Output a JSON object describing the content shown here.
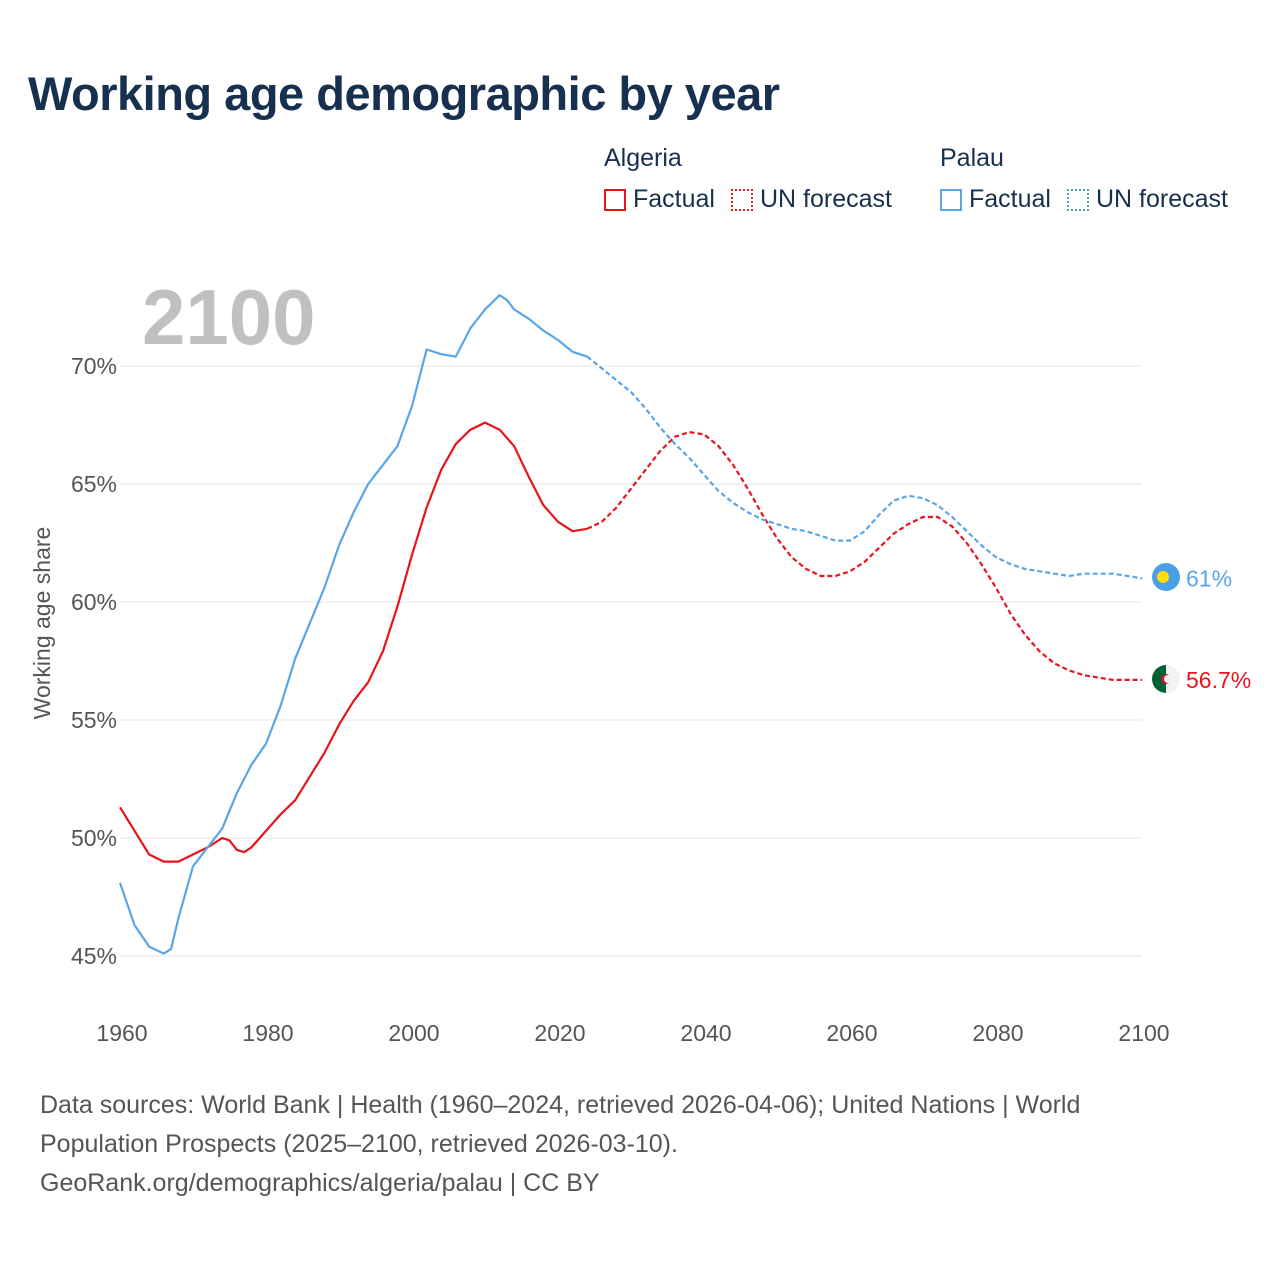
{
  "title": "Working age demographic by year",
  "legend": {
    "groups": [
      {
        "name": "Algeria",
        "factual_label": "Factual",
        "forecast_label": "UN forecast",
        "color": "#e8141c"
      },
      {
        "name": "Palau",
        "factual_label": "Factual",
        "forecast_label": "UN forecast",
        "color": "#5aa5e6",
        "forecast_color": "#4a9fb0"
      }
    ]
  },
  "footer": {
    "line1": "Data sources: World Bank | Health (1960–2024, retrieved 2026-04-06); United Nations | World",
    "line2": "Population Prospects (2025–2100, retrieved 2026-03-10).",
    "line3": "GeoRank.org/demographics/algeria/palau | CC BY"
  },
  "chart_data": {
    "type": "line",
    "title": "Working age demographic by year",
    "year_label": "2100",
    "xlabel": "",
    "ylabel": "Working age share",
    "xlim": [
      1960,
      2100
    ],
    "ylim": [
      44.5,
      73.5
    ],
    "x_ticks": [
      1960,
      1980,
      2000,
      2020,
      2040,
      2060,
      2080,
      2100
    ],
    "x_tick_labels": [
      "1960",
      "1980",
      "2000",
      "2020",
      "2040",
      "2060",
      "2080",
      "2100"
    ],
    "y_ticks": [
      45,
      50,
      55,
      60,
      65,
      70
    ],
    "y_tick_labels": [
      "45%",
      "50%",
      "55%",
      "60%",
      "65%",
      "70%"
    ],
    "grid": true,
    "forecast_start": 2024,
    "series": [
      {
        "name": "Algeria",
        "color": "#e8141c",
        "end_label": "56.7%",
        "flag": "algeria",
        "points": [
          [
            1960,
            51.3
          ],
          [
            1962,
            50.3
          ],
          [
            1964,
            49.3
          ],
          [
            1966,
            49.0
          ],
          [
            1968,
            49.0
          ],
          [
            1970,
            49.3
          ],
          [
            1972,
            49.6
          ],
          [
            1974,
            50.0
          ],
          [
            1975,
            49.9
          ],
          [
            1976,
            49.5
          ],
          [
            1977,
            49.4
          ],
          [
            1978,
            49.6
          ],
          [
            1980,
            50.3
          ],
          [
            1982,
            51.0
          ],
          [
            1984,
            51.6
          ],
          [
            1986,
            52.6
          ],
          [
            1988,
            53.6
          ],
          [
            1990,
            54.8
          ],
          [
            1992,
            55.8
          ],
          [
            1994,
            56.6
          ],
          [
            1996,
            57.9
          ],
          [
            1998,
            59.8
          ],
          [
            2000,
            62.0
          ],
          [
            2002,
            64.0
          ],
          [
            2004,
            65.6
          ],
          [
            2006,
            66.7
          ],
          [
            2008,
            67.3
          ],
          [
            2010,
            67.6
          ],
          [
            2012,
            67.3
          ],
          [
            2014,
            66.6
          ],
          [
            2016,
            65.3
          ],
          [
            2018,
            64.1
          ],
          [
            2020,
            63.4
          ],
          [
            2022,
            63.0
          ],
          [
            2024,
            63.1
          ],
          [
            2026,
            63.4
          ],
          [
            2028,
            64.0
          ],
          [
            2030,
            64.8
          ],
          [
            2032,
            65.6
          ],
          [
            2034,
            66.4
          ],
          [
            2036,
            67.0
          ],
          [
            2038,
            67.2
          ],
          [
            2040,
            67.1
          ],
          [
            2042,
            66.6
          ],
          [
            2044,
            65.8
          ],
          [
            2046,
            64.8
          ],
          [
            2048,
            63.7
          ],
          [
            2050,
            62.7
          ],
          [
            2052,
            61.9
          ],
          [
            2054,
            61.4
          ],
          [
            2056,
            61.1
          ],
          [
            2058,
            61.1
          ],
          [
            2060,
            61.3
          ],
          [
            2062,
            61.7
          ],
          [
            2064,
            62.3
          ],
          [
            2066,
            62.9
          ],
          [
            2068,
            63.3
          ],
          [
            2070,
            63.6
          ],
          [
            2072,
            63.6
          ],
          [
            2074,
            63.2
          ],
          [
            2076,
            62.5
          ],
          [
            2078,
            61.6
          ],
          [
            2080,
            60.6
          ],
          [
            2082,
            59.5
          ],
          [
            2084,
            58.6
          ],
          [
            2086,
            57.9
          ],
          [
            2088,
            57.4
          ],
          [
            2090,
            57.1
          ],
          [
            2092,
            56.9
          ],
          [
            2094,
            56.8
          ],
          [
            2096,
            56.7
          ],
          [
            2098,
            56.7
          ],
          [
            2100,
            56.7
          ]
        ]
      },
      {
        "name": "Palau",
        "color": "#5aa5e6",
        "end_label": "61%",
        "flag": "palau",
        "points": [
          [
            1960,
            48.1
          ],
          [
            1962,
            46.3
          ],
          [
            1964,
            45.4
          ],
          [
            1966,
            45.1
          ],
          [
            1967,
            45.3
          ],
          [
            1968,
            46.6
          ],
          [
            1970,
            48.8
          ],
          [
            1972,
            49.6
          ],
          [
            1974,
            50.4
          ],
          [
            1976,
            51.9
          ],
          [
            1978,
            53.1
          ],
          [
            1980,
            54.0
          ],
          [
            1982,
            55.6
          ],
          [
            1984,
            57.6
          ],
          [
            1986,
            59.1
          ],
          [
            1988,
            60.6
          ],
          [
            1990,
            62.4
          ],
          [
            1992,
            63.8
          ],
          [
            1994,
            65.0
          ],
          [
            1996,
            65.8
          ],
          [
            1998,
            66.6
          ],
          [
            2000,
            68.3
          ],
          [
            2002,
            70.7
          ],
          [
            2004,
            70.5
          ],
          [
            2006,
            70.4
          ],
          [
            2008,
            71.6
          ],
          [
            2010,
            72.4
          ],
          [
            2012,
            73.0
          ],
          [
            2013,
            72.8
          ],
          [
            2014,
            72.4
          ],
          [
            2016,
            72.0
          ],
          [
            2018,
            71.5
          ],
          [
            2020,
            71.1
          ],
          [
            2022,
            70.6
          ],
          [
            2024,
            70.4
          ],
          [
            2026,
            69.9
          ],
          [
            2028,
            69.4
          ],
          [
            2030,
            68.9
          ],
          [
            2032,
            68.2
          ],
          [
            2034,
            67.4
          ],
          [
            2036,
            66.7
          ],
          [
            2038,
            66.1
          ],
          [
            2040,
            65.4
          ],
          [
            2042,
            64.7
          ],
          [
            2044,
            64.2
          ],
          [
            2046,
            63.8
          ],
          [
            2048,
            63.5
          ],
          [
            2050,
            63.3
          ],
          [
            2052,
            63.1
          ],
          [
            2054,
            63.0
          ],
          [
            2056,
            62.8
          ],
          [
            2058,
            62.6
          ],
          [
            2060,
            62.6
          ],
          [
            2062,
            63.0
          ],
          [
            2064,
            63.7
          ],
          [
            2066,
            64.3
          ],
          [
            2068,
            64.5
          ],
          [
            2070,
            64.4
          ],
          [
            2072,
            64.1
          ],
          [
            2074,
            63.6
          ],
          [
            2076,
            63.0
          ],
          [
            2078,
            62.4
          ],
          [
            2080,
            61.9
          ],
          [
            2082,
            61.6
          ],
          [
            2084,
            61.4
          ],
          [
            2086,
            61.3
          ],
          [
            2088,
            61.2
          ],
          [
            2090,
            61.1
          ],
          [
            2092,
            61.2
          ],
          [
            2094,
            61.2
          ],
          [
            2096,
            61.2
          ],
          [
            2098,
            61.1
          ],
          [
            2100,
            61.0
          ]
        ]
      }
    ]
  }
}
